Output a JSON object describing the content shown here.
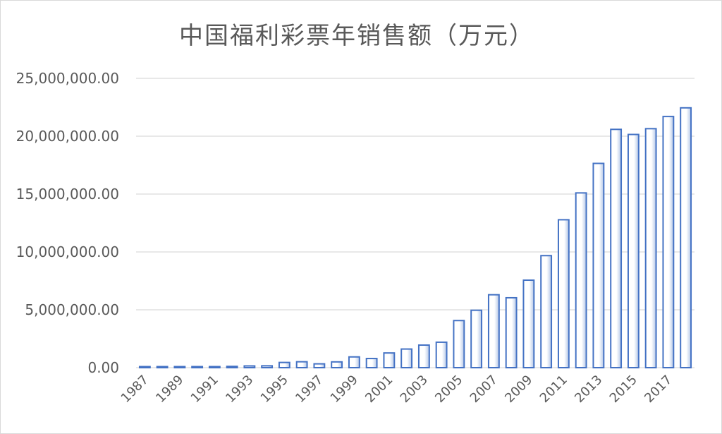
{
  "chart_data": {
    "type": "bar",
    "title": "中国福利彩票年销售额（万元）",
    "xlabel": "",
    "ylabel": "",
    "ylim": [
      0,
      25000000
    ],
    "yticks": [
      0,
      5000000,
      10000000,
      15000000,
      20000000,
      25000000
    ],
    "ytick_labels": [
      "0.00",
      "5,000,000.00",
      "10,000,000.00",
      "15,000,000.00",
      "20,000,000.00",
      "25,000,000.00"
    ],
    "grid": true,
    "legend": "none",
    "categories": [
      "1987",
      "1988",
      "1989",
      "1990",
      "1991",
      "1992",
      "1993",
      "1994",
      "1995",
      "1996",
      "1997",
      "1998",
      "1999",
      "2000",
      "2001",
      "2002",
      "2003",
      "2004",
      "2005",
      "2006",
      "2007",
      "2008",
      "2009",
      "2010",
      "2011",
      "2012",
      "2013",
      "2014",
      "2015",
      "2016",
      "2017",
      "2018"
    ],
    "xtick_labels": [
      "1987",
      "1989",
      "1991",
      "1993",
      "1995",
      "1997",
      "1999",
      "2001",
      "2003",
      "2005",
      "2007",
      "2009",
      "2011",
      "2013",
      "2015",
      "2017"
    ],
    "values": [
      20000,
      40000,
      50000,
      60000,
      60000,
      110000,
      150000,
      160000,
      450000,
      510000,
      330000,
      500000,
      930000,
      790000,
      1270000,
      1610000,
      1950000,
      2200000,
      4070000,
      4960000,
      6300000,
      6040000,
      7560000,
      9680000,
      12780000,
      15100000,
      17650000,
      20590000,
      20150000,
      20650000,
      21700000,
      22450000
    ],
    "colors": {
      "bar_fill_top": "#ffffff",
      "bar_fill_bottom": "#b4c7e7",
      "bar_stroke": "#4472c4",
      "grid": "#d9d9d9",
      "axis_text": "#595959"
    }
  }
}
